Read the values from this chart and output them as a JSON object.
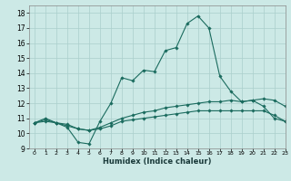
{
  "xlabel": "Humidex (Indice chaleur)",
  "xlim": [
    -0.5,
    23
  ],
  "ylim": [
    9,
    18.5
  ],
  "yticks": [
    9,
    10,
    11,
    12,
    13,
    14,
    15,
    16,
    17,
    18
  ],
  "xticks": [
    0,
    1,
    2,
    3,
    4,
    5,
    6,
    7,
    8,
    9,
    10,
    11,
    12,
    13,
    14,
    15,
    16,
    17,
    18,
    19,
    20,
    21,
    22,
    23
  ],
  "bg_color": "#cce9e6",
  "grid_color": "#aacfcc",
  "line_color": "#1a6b5e",
  "line1": [
    10.7,
    11.0,
    10.7,
    10.4,
    9.4,
    9.3,
    10.8,
    12.0,
    13.7,
    13.5,
    14.2,
    14.1,
    15.5,
    15.7,
    17.3,
    17.8,
    17.0,
    13.8,
    12.8,
    12.1,
    12.2,
    11.8,
    11.0,
    10.8
  ],
  "line2": [
    10.7,
    10.9,
    10.7,
    10.6,
    10.3,
    10.2,
    10.4,
    10.7,
    11.0,
    11.2,
    11.4,
    11.5,
    11.7,
    11.8,
    11.9,
    12.0,
    12.1,
    12.1,
    12.2,
    12.1,
    12.2,
    12.3,
    12.2,
    11.8
  ],
  "line3": [
    10.7,
    10.8,
    10.7,
    10.5,
    10.3,
    10.2,
    10.3,
    10.5,
    10.8,
    10.9,
    11.0,
    11.1,
    11.2,
    11.3,
    11.4,
    11.5,
    11.5,
    11.5,
    11.5,
    11.5,
    11.5,
    11.5,
    11.2,
    10.8
  ]
}
